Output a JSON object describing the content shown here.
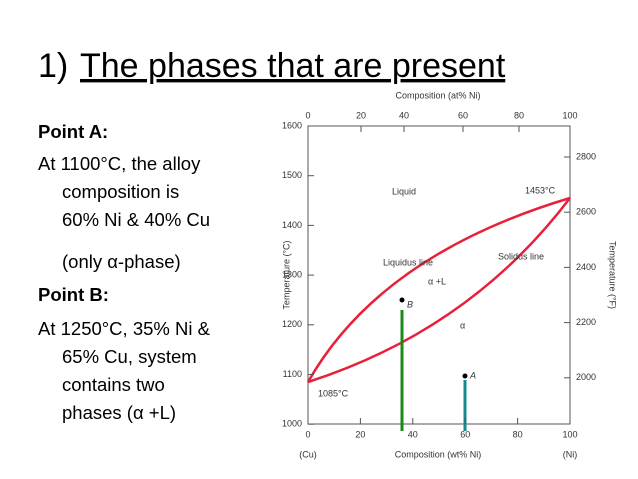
{
  "slide": {
    "title": {
      "number": "1)",
      "text": "The phases that are present"
    },
    "body": [
      "Point A:",
      "At 1100°C, the alloy",
      "composition is",
      "60% Ni & 40% Cu",
      "(only α-phase)",
      "Point B:",
      "At 1250°C, 35% Ni &",
      "65% Cu, system",
      "contains two",
      "phases (α +L)"
    ],
    "figure": {
      "top_axis_title": "Composition (at% Ni)",
      "top_ticks": [
        "0",
        "20",
        "40",
        "60",
        "80",
        "100"
      ],
      "bottom_axis_title": "Composition (wt% Ni)",
      "bottom_ticks": [
        "0",
        "20",
        "40",
        "60",
        "80",
        "100"
      ],
      "left_axis_title": "Temperature (°C)",
      "left_ticks": [
        "1600",
        "1500",
        "1400",
        "1300",
        "1200",
        "1100",
        "1000"
      ],
      "right_axis_title": "Temperature (°F)",
      "right_ticks": [
        "2800",
        "2600",
        "2400",
        "2200",
        "2000"
      ],
      "left_end": "(Cu)",
      "right_end": "(Ni)",
      "labels": {
        "liquid": "Liquid",
        "ni_melt": "1453°C",
        "liquidus": "Liquidus line",
        "solidus": "Solidus line",
        "two_phase": "α +L",
        "alpha": "α",
        "cu_melt": "1085°C",
        "point_b": "B",
        "point_a": "A"
      }
    }
  }
}
